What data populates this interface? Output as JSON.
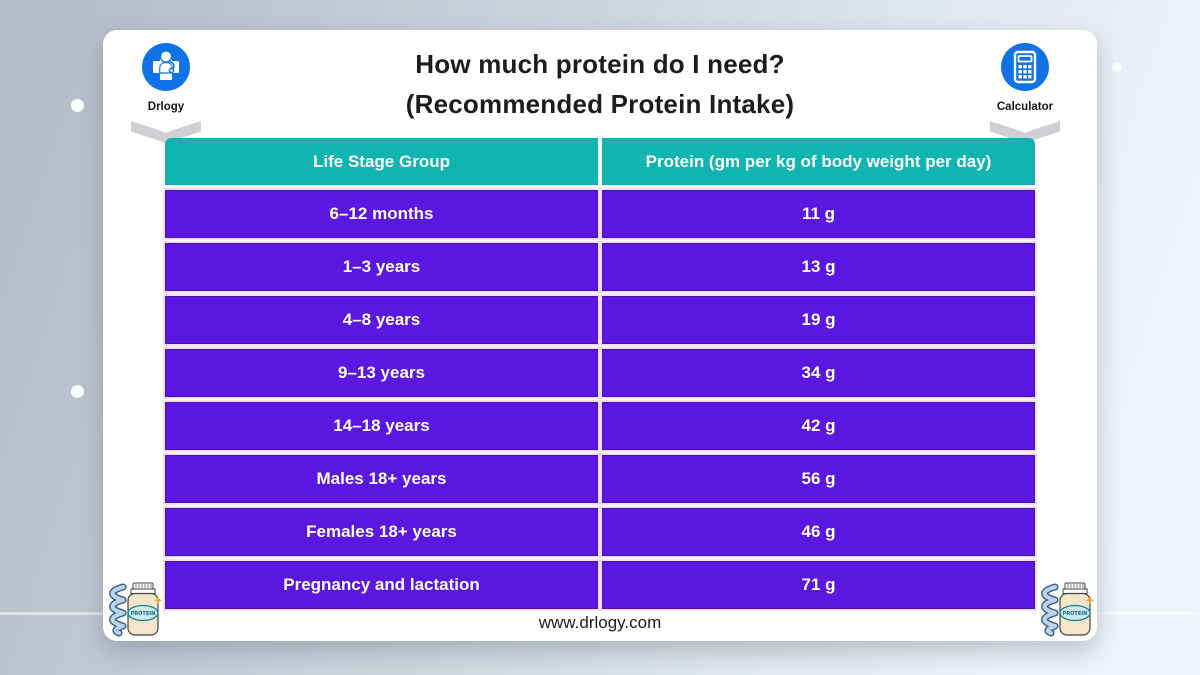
{
  "page": {
    "title_line1": "How much protein do I need?",
    "title_line2": "(Recommended Protein Intake)",
    "footer": "www.drlogy.com"
  },
  "badges": {
    "left": {
      "label": "Drlogy",
      "icon": "medical-cross-person-icon"
    },
    "right": {
      "label": "Calculator",
      "icon": "calculator-icon"
    }
  },
  "decor": {
    "protein_icon_label": "PROTEIN",
    "corner_icon": "protein-jar-dna-icon"
  },
  "colors": {
    "header_bg": "#10b4b0",
    "row_bg": "#5a17e1",
    "row_divider": "#f5ddf3",
    "text_on_color": "#ffffff",
    "title_text": "#1c1c1e",
    "badge_circle_blue": "#1172e8",
    "ribbon_gray": "#cfd0d4"
  },
  "chart_data": {
    "type": "table",
    "title": "How much protein do I need? (Recommended Protein Intake)",
    "columns": [
      "Life Stage Group",
      "Protein (gm per kg of body weight per day)"
    ],
    "rows": [
      [
        "6–12 months",
        "11 g"
      ],
      [
        "1–3 years",
        "13 g"
      ],
      [
        "4–8 years",
        "19 g"
      ],
      [
        "9–13 years",
        "34 g"
      ],
      [
        "14–18 years",
        "42 g"
      ],
      [
        "Males 18+ years",
        "56 g"
      ],
      [
        "Females 18+ years",
        "46 g"
      ],
      [
        "Pregnancy and lactation",
        "71 g"
      ]
    ]
  }
}
